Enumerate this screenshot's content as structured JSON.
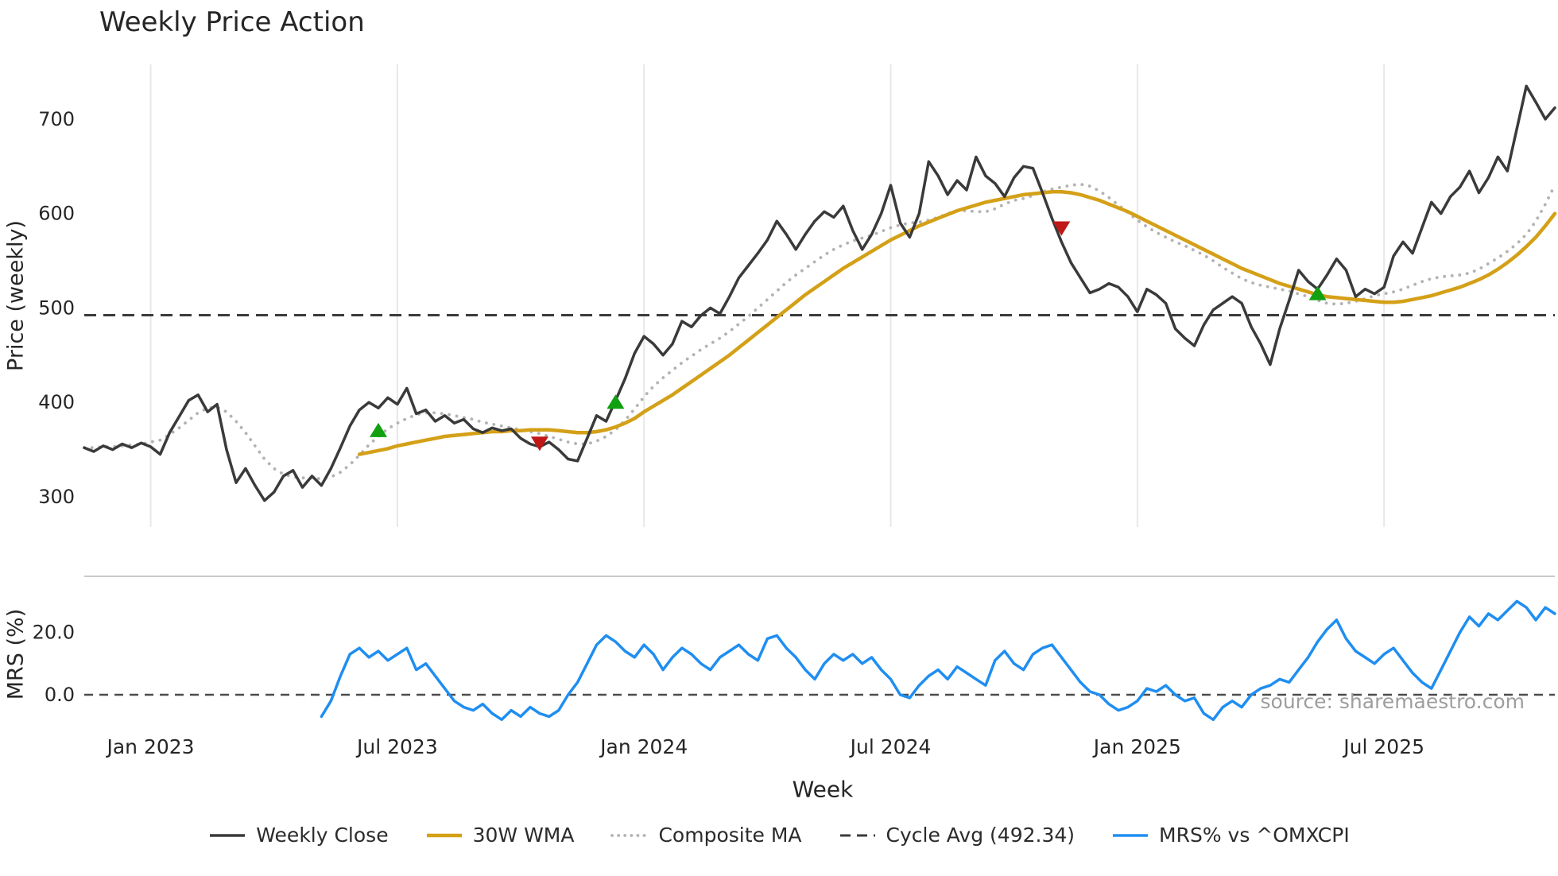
{
  "title": "Weekly Price Action",
  "xlabel": "Week",
  "ylabel_price": "Price (weekly)",
  "ylabel_mrs": "MRS (%)",
  "source": "source: sharemaestro.com",
  "colors": {
    "close": "#3a3a3a",
    "wma": "#d4a017",
    "composite": "#b3b3b3",
    "cycle": "#3b3b3b",
    "mrs": "#1f8ef1",
    "buy": "#10a010",
    "sell": "#c01717",
    "grid": "#e8e8e8",
    "panel_border": "#c9c9c9",
    "zero": "#4d4d4d",
    "text": "#262626",
    "muted": "#9e9e9e"
  },
  "legend": {
    "items": [
      {
        "label": "Weekly Close",
        "style": "solid",
        "color_key": "close",
        "weight": 3.5
      },
      {
        "label": "30W WMA",
        "style": "solid",
        "color_key": "wma",
        "weight": 4.5
      },
      {
        "label": "Composite MA",
        "style": "dotted",
        "color_key": "composite",
        "weight": 3.8
      },
      {
        "label": "Cycle Avg (492.34)",
        "style": "dashed",
        "color_key": "cycle",
        "weight": 3
      },
      {
        "label": "MRS% vs ^OMXCPI",
        "style": "solid",
        "color_key": "mrs",
        "weight": 3.5
      }
    ]
  },
  "chart_data": [
    {
      "type": "line",
      "panel": "price",
      "title": "Weekly Price Action",
      "ylabel": "Price (weekly)",
      "ylim": [
        268,
        758
      ],
      "grid": "vertical-only",
      "yticks": [
        {
          "v": 300,
          "label": "300"
        },
        {
          "v": 400,
          "label": "400"
        },
        {
          "v": 500,
          "label": "500"
        },
        {
          "v": 600,
          "label": "600"
        },
        {
          "v": 700,
          "label": "700"
        }
      ],
      "xticks": [
        {
          "week": 7,
          "label": "Jan 2023"
        },
        {
          "week": 33,
          "label": "Jul 2023"
        },
        {
          "week": 59,
          "label": "Jan 2024"
        },
        {
          "week": 85,
          "label": "Jul 2024"
        },
        {
          "week": 111,
          "label": "Jan 2025"
        },
        {
          "week": 137,
          "label": "Jul 2025"
        }
      ],
      "cycle_avg": 492.34,
      "series": [
        {
          "name": "Weekly Close",
          "style": "solid",
          "color_key": "close",
          "start": 0,
          "values": [
            352,
            348,
            354,
            350,
            356,
            352,
            357,
            353,
            345,
            368,
            385,
            402,
            408,
            390,
            398,
            350,
            315,
            330,
            312,
            296,
            305,
            322,
            328,
            310,
            322,
            312,
            330,
            352,
            375,
            392,
            400,
            394,
            405,
            398,
            415,
            388,
            392,
            380,
            386,
            378,
            382,
            372,
            368,
            373,
            370,
            372,
            362,
            356,
            353,
            358,
            350,
            340,
            338,
            362,
            386,
            380,
            402,
            425,
            452,
            470,
            462,
            450,
            462,
            486,
            480,
            492,
            500,
            494,
            512,
            532,
            545,
            558,
            572,
            592,
            578,
            562,
            578,
            592,
            602,
            596,
            608,
            582,
            562,
            578,
            600,
            630,
            590,
            575,
            600,
            655,
            640,
            620,
            635,
            625,
            660,
            640,
            632,
            618,
            638,
            650,
            648,
            622,
            595,
            570,
            548,
            532,
            516,
            520,
            526,
            522,
            512,
            496,
            520,
            514,
            505,
            478,
            468,
            460,
            482,
            498,
            505,
            512,
            505,
            480,
            462,
            440,
            478,
            508,
            540,
            528,
            520,
            535,
            552,
            540,
            512,
            520,
            515,
            522,
            555,
            570,
            558,
            585,
            612,
            600,
            618,
            628,
            645,
            622,
            638,
            660,
            645,
            690,
            735,
            718,
            700,
            712
          ]
        },
        {
          "name": "30W WMA",
          "style": "solid",
          "color_key": "wma",
          "start": 29,
          "values": [
            345,
            347,
            349,
            351,
            354,
            356,
            358,
            360,
            362,
            364,
            365,
            366,
            367,
            368,
            369,
            369,
            370,
            370,
            371,
            371,
            371,
            370,
            369,
            368,
            368,
            369,
            371,
            374,
            378,
            383,
            390,
            396,
            402,
            408,
            415,
            422,
            429,
            436,
            443,
            450,
            458,
            466,
            474,
            482,
            490,
            498,
            506,
            514,
            521,
            528,
            535,
            542,
            548,
            554,
            560,
            566,
            572,
            577,
            582,
            587,
            591,
            595,
            599,
            603,
            606,
            609,
            612,
            614,
            616,
            618,
            620,
            621,
            622,
            623,
            623,
            622,
            620,
            617,
            614,
            610,
            606,
            602,
            597,
            592,
            587,
            582,
            577,
            572,
            567,
            562,
            557,
            552,
            547,
            542,
            538,
            534,
            530,
            526,
            523,
            520,
            517,
            514,
            512,
            511,
            510,
            509,
            508,
            507,
            506,
            506,
            507,
            509,
            511,
            513,
            516,
            519,
            522,
            526,
            530,
            535,
            541,
            548,
            556,
            565,
            575,
            587,
            600
          ]
        },
        {
          "name": "Composite MA",
          "style": "dotted",
          "color_key": "composite",
          "start": 0,
          "values": [
            352,
            352,
            353,
            353,
            354,
            355,
            356,
            358,
            360,
            366,
            373,
            381,
            389,
            394,
            395,
            390,
            380,
            368,
            354,
            340,
            330,
            324,
            321,
            320,
            320,
            319,
            321,
            326,
            334,
            344,
            355,
            364,
            372,
            378,
            383,
            387,
            389,
            389,
            388,
            386,
            384,
            382,
            379,
            377,
            375,
            373,
            371,
            369,
            367,
            364,
            361,
            358,
            356,
            356,
            359,
            364,
            371,
            381,
            393,
            406,
            417,
            426,
            434,
            442,
            449,
            456,
            462,
            468,
            475,
            483,
            491,
            500,
            509,
            518,
            527,
            535,
            542,
            549,
            556,
            562,
            567,
            571,
            574,
            577,
            581,
            585,
            588,
            590,
            591,
            593,
            596,
            600,
            603,
            603,
            602,
            602,
            605,
            610,
            614,
            616,
            619,
            623,
            626,
            628,
            630,
            631,
            629,
            624,
            617,
            609,
            601,
            593,
            586,
            580,
            575,
            570,
            566,
            561,
            556,
            550,
            543,
            537,
            531,
            527,
            524,
            522,
            520,
            518,
            515,
            512,
            508,
            505,
            504,
            505,
            507,
            510,
            513,
            515,
            517,
            520,
            524,
            528,
            531,
            533,
            534,
            535,
            537,
            541,
            547,
            553,
            560,
            568,
            578,
            592,
            610,
            630
          ]
        }
      ],
      "signals": [
        {
          "week": 31,
          "price": 370,
          "type": "buy"
        },
        {
          "week": 48,
          "price": 357,
          "type": "sell"
        },
        {
          "week": 56,
          "price": 400,
          "type": "buy"
        },
        {
          "week": 103,
          "price": 585,
          "type": "sell"
        },
        {
          "week": 130,
          "price": 515,
          "type": "buy"
        }
      ]
    },
    {
      "type": "line",
      "panel": "mrs",
      "ylabel": "MRS (%)",
      "ylim": [
        -12,
        38
      ],
      "zero_line": 0,
      "yticks": [
        {
          "v": 20,
          "label": "20.0"
        },
        {
          "v": 0,
          "label": "0.0"
        }
      ],
      "series": [
        {
          "name": "MRS% vs ^OMXCPI",
          "style": "solid",
          "color_key": "mrs",
          "start": 25,
          "values": [
            -7,
            -2,
            6,
            13,
            15,
            12,
            14,
            11,
            13,
            15,
            8,
            10,
            6,
            2,
            -2,
            -4,
            -5,
            -3,
            -6,
            -8,
            -5,
            -7,
            -4,
            -6,
            -7,
            -5,
            0,
            4,
            10,
            16,
            19,
            17,
            14,
            12,
            16,
            13,
            8,
            12,
            15,
            13,
            10,
            8,
            12,
            14,
            16,
            13,
            11,
            18,
            19,
            15,
            12,
            8,
            5,
            10,
            13,
            11,
            13,
            10,
            12,
            8,
            5,
            0,
            -1,
            3,
            6,
            8,
            5,
            9,
            7,
            5,
            3,
            11,
            14,
            10,
            8,
            13,
            15,
            16,
            12,
            8,
            4,
            1,
            0,
            -3,
            -5,
            -4,
            -2,
            2,
            1,
            3,
            0,
            -2,
            -1,
            -6,
            -8,
            -4,
            -2,
            -4,
            0,
            2,
            3,
            5,
            4,
            8,
            12,
            17,
            21,
            24,
            18,
            14,
            12,
            10,
            13,
            15,
            11,
            7,
            4,
            2,
            8,
            14,
            20,
            25,
            22,
            26,
            24,
            27,
            30,
            28,
            24,
            28,
            26
          ]
        }
      ]
    }
  ]
}
